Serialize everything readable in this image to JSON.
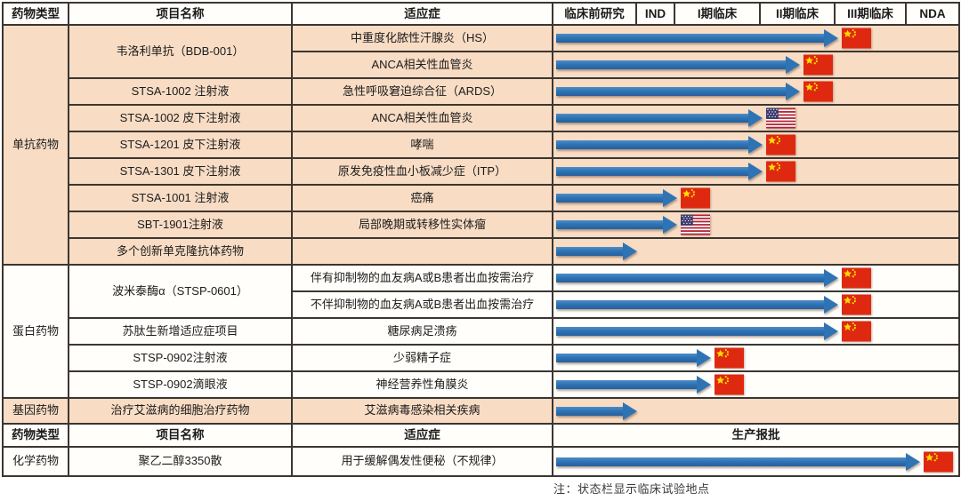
{
  "header": {
    "type": "药物类型",
    "project": "项目名称",
    "indication": "适应症",
    "phases": [
      "临床前研究",
      "IND",
      "I期临床",
      "II期临床",
      "III期临床",
      "NDA"
    ]
  },
  "header2": {
    "type": "药物类型",
    "project": "项目名称",
    "indication": "适应症",
    "production": "生产报批"
  },
  "sections": {
    "mab": "单抗药物",
    "protein": "蛋白药物",
    "gene": "基因药物",
    "chemical": "化学药物"
  },
  "rows": [
    {
      "project": "韦洛利单抗（BDB-001）",
      "indication": "中重度化脓性汗腺炎（HS）",
      "arrow_end": 320,
      "flag": "cn"
    },
    {
      "indication": "ANCA相关性血管炎",
      "arrow_end": 277,
      "flag": "cn"
    },
    {
      "project": "STSA-1002 注射液",
      "indication": "急性呼吸窘迫综合征（ARDS）",
      "arrow_end": 277,
      "flag": "cn"
    },
    {
      "project": "STSA-1002 皮下注射液",
      "indication": "ANCA相关性血管炎",
      "arrow_end": 235,
      "flag": "us"
    },
    {
      "project": "STSA-1201 皮下注射液",
      "indication": "哮喘",
      "arrow_end": 235,
      "flag": "cn"
    },
    {
      "project": "STSA-1301 皮下注射液",
      "indication": "原发免疫性血小板减少症（ITP）",
      "arrow_end": 235,
      "flag": "cn"
    },
    {
      "project": "STSA-1001 注射液",
      "indication": "癌痛",
      "arrow_end": 139,
      "flag": "cn"
    },
    {
      "project": "SBT-1901注射液",
      "indication": "局部晚期或转移性实体瘤",
      "arrow_end": 139,
      "flag": "us"
    },
    {
      "project": "多个创新单克隆抗体药物",
      "indication": "",
      "arrow_end": 94,
      "flag": null
    },
    {
      "project": "波米泰酶α（STSP-0601）",
      "indication": "伴有抑制物的血友病A或B患者出血按需治疗",
      "arrow_end": 320,
      "flag": "cn"
    },
    {
      "indication": "不伴抑制物的血友病A或B患者出血按需治疗",
      "arrow_end": 320,
      "flag": "cn"
    },
    {
      "project": "苏肽生新增适应症项目",
      "indication": "糖尿病足溃疡",
      "arrow_end": 320,
      "flag": "cn"
    },
    {
      "project": "STSP-0902注射液",
      "indication": "少弱精子症",
      "arrow_end": 177,
      "flag": "cn"
    },
    {
      "project": "STSP-0902滴眼液",
      "indication": "神经营养性角膜炎",
      "arrow_end": 177,
      "flag": "cn"
    },
    {
      "project": "治疗艾滋病的细胞治疗药物",
      "indication": "艾滋病毒感染相关疾病",
      "arrow_end": 94,
      "flag": null
    },
    {
      "project": "聚乙二醇3350散",
      "indication": "用于缓解偶发性便秘（不规律）",
      "arrow_end": 412,
      "flag": "cn"
    }
  ],
  "note": "注：状态栏显示临床试验地点",
  "colors": {
    "arrow_blue": "#2e74b5",
    "flag_red": "#de2910",
    "flag_star_yellow": "#ffde00",
    "section_peach": "#f8dcc4",
    "section_white": "#fffefb",
    "border": "#3c3631"
  }
}
